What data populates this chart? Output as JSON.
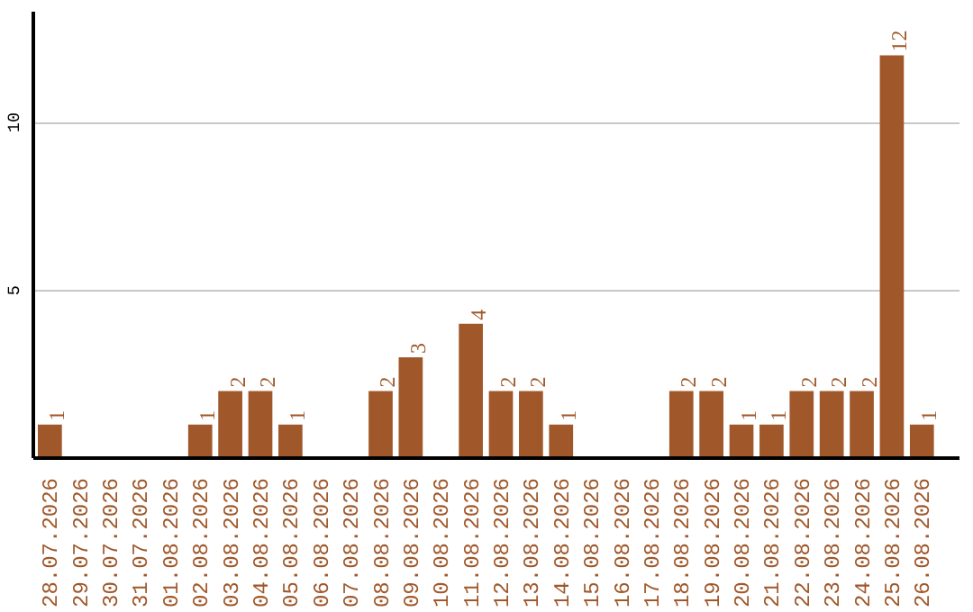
{
  "chart_data": {
    "type": "bar",
    "categories": [
      "28.07.2026",
      "29.07.2026",
      "30.07.2026",
      "31.07.2026",
      "01.08.2026",
      "02.08.2026",
      "03.08.2026",
      "04.08.2026",
      "05.08.2026",
      "06.08.2026",
      "07.08.2026",
      "08.08.2026",
      "09.08.2026",
      "10.08.2026",
      "11.08.2026",
      "12.08.2026",
      "13.08.2026",
      "14.08.2026",
      "15.08.2026",
      "16.08.2026",
      "17.08.2026",
      "18.08.2026",
      "19.08.2026",
      "20.08.2026",
      "21.08.2026",
      "22.08.2026",
      "23.08.2026",
      "24.08.2026",
      "25.08.2026",
      "26.08.2026"
    ],
    "values": [
      1,
      0,
      0,
      0,
      0,
      1,
      2,
      2,
      1,
      0,
      0,
      2,
      3,
      0,
      4,
      2,
      2,
      1,
      0,
      0,
      0,
      2,
      2,
      1,
      1,
      2,
      2,
      2,
      12,
      1
    ],
    "value_labels": [
      "1",
      null,
      null,
      null,
      null,
      "1",
      "2",
      "2",
      "1",
      null,
      null,
      "2",
      "3",
      null,
      "4",
      "2",
      "2",
      "1",
      null,
      null,
      null,
      "2",
      "2",
      "1",
      "1",
      "2",
      "2",
      "2",
      "12",
      "1"
    ],
    "color": "#a0582a",
    "ylim": [
      0,
      13.3
    ],
    "yticks": [
      5,
      10
    ],
    "grid": "y"
  }
}
